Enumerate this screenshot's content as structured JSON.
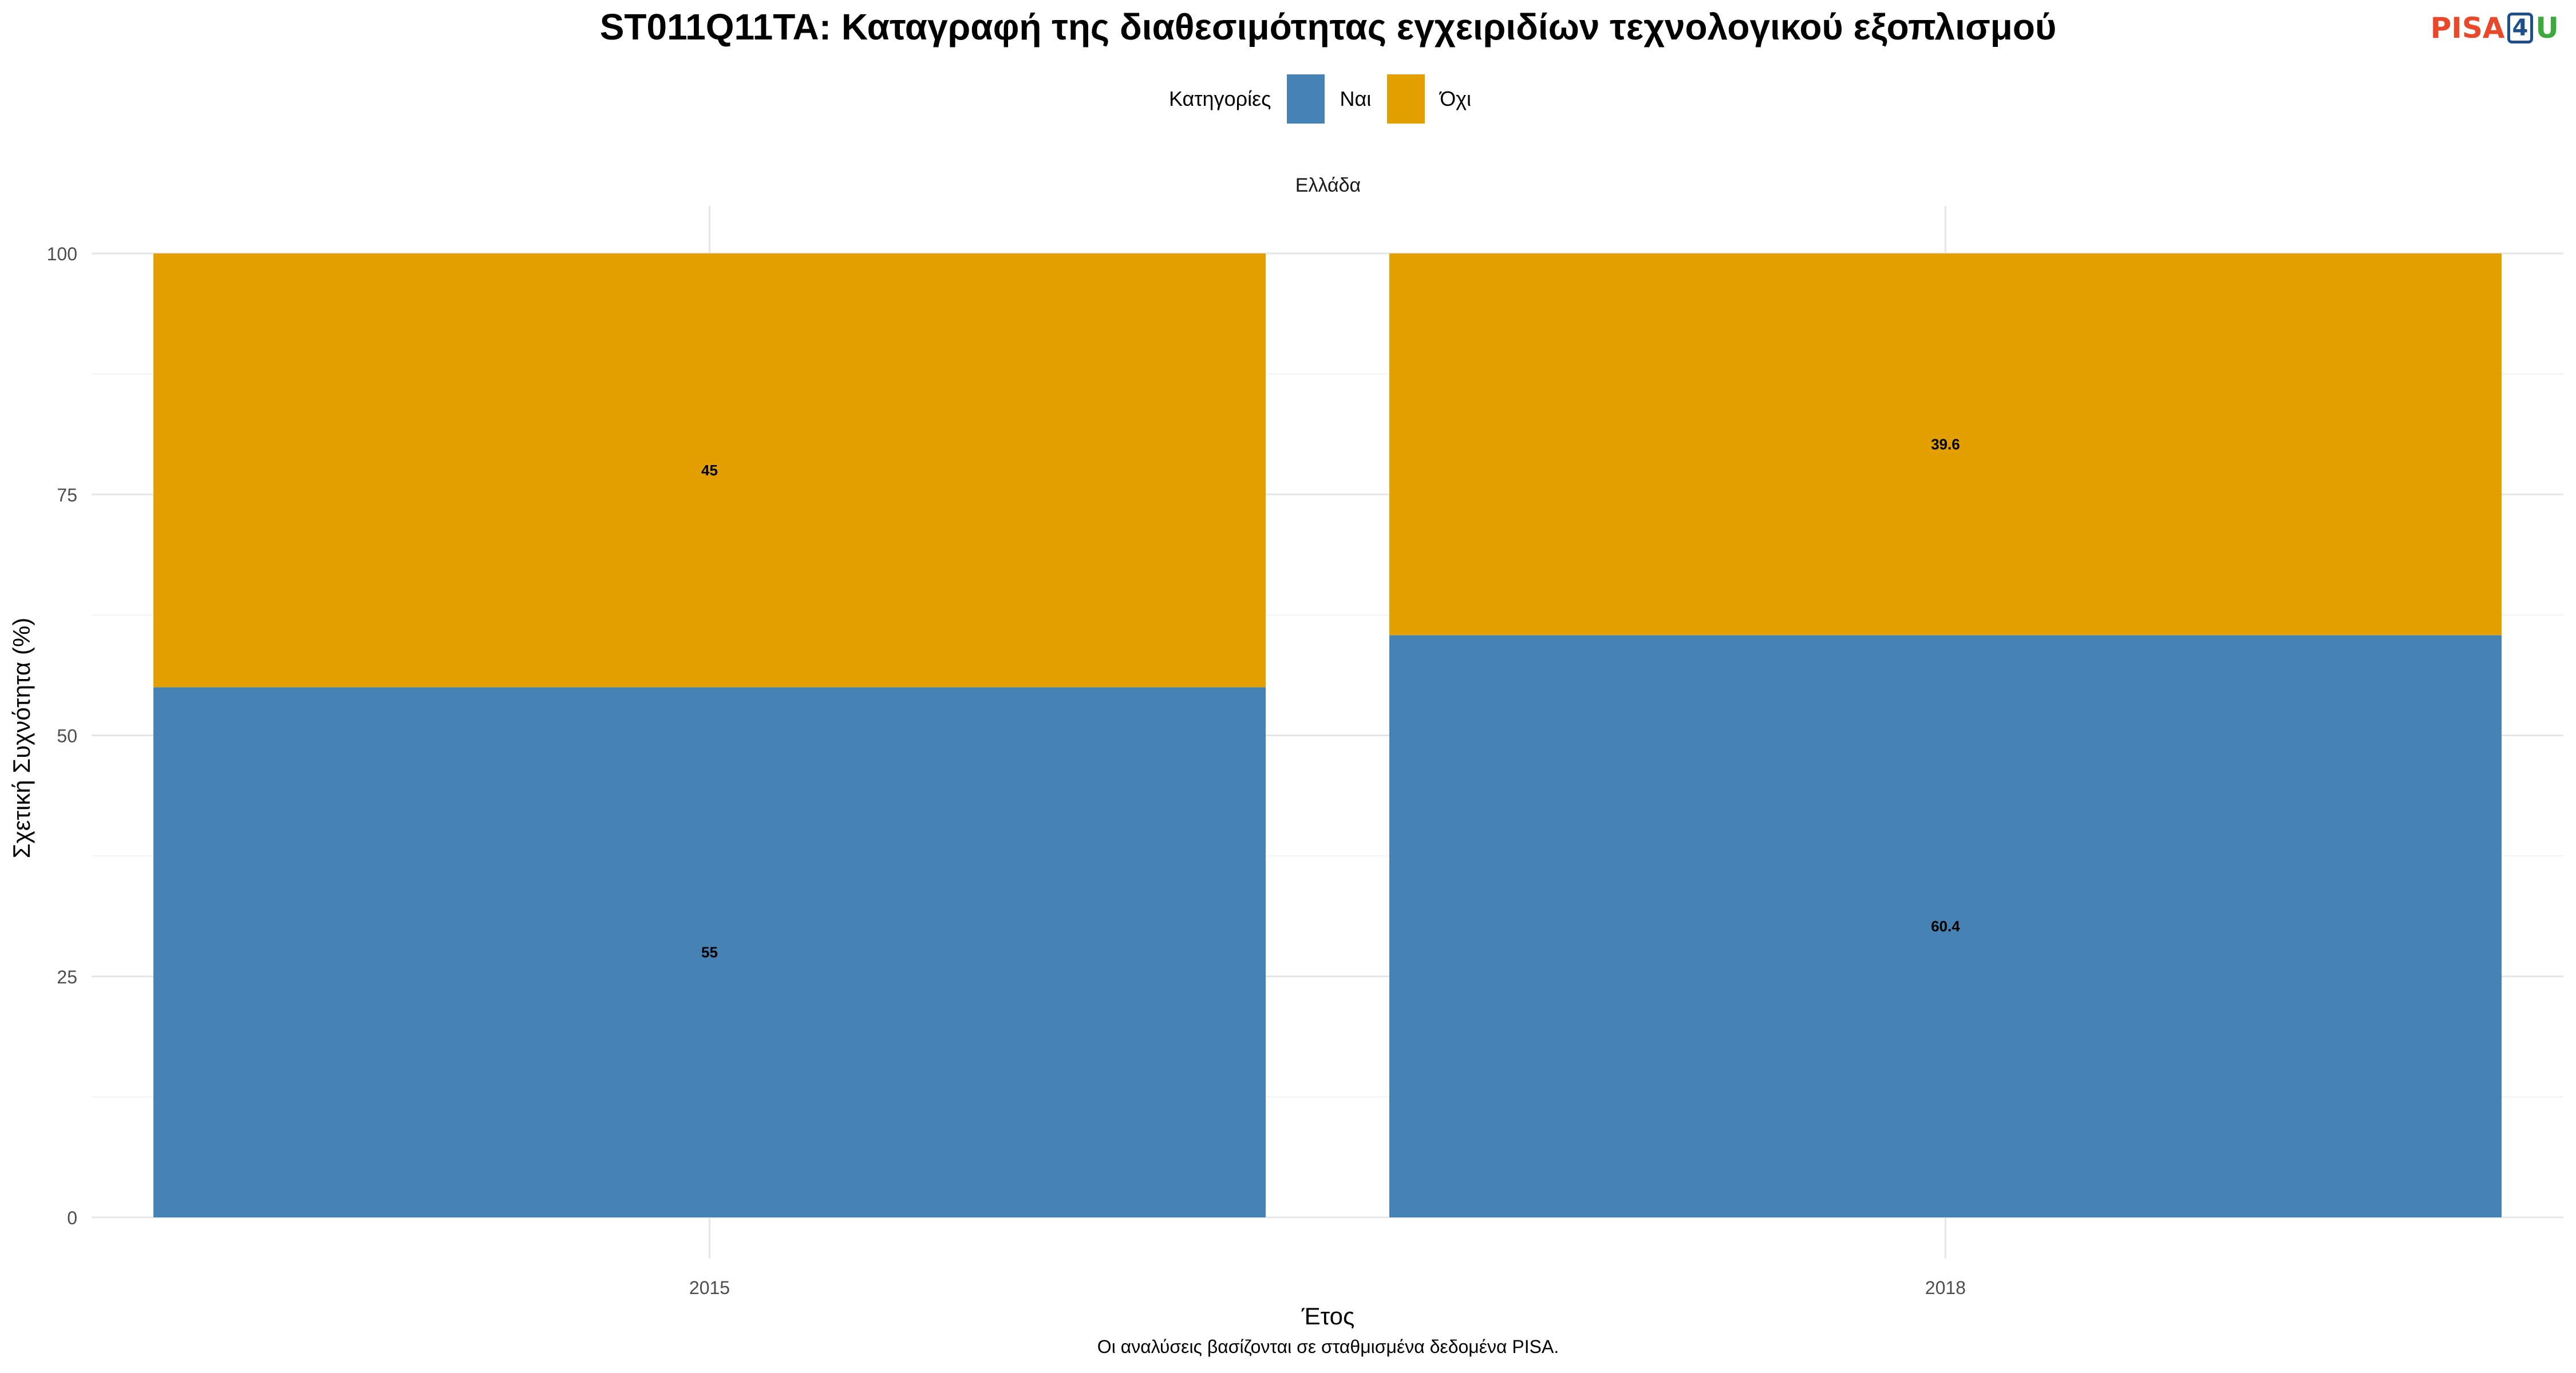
{
  "title": "ST011Q11TA: Καταγραφή της διαθεσιμότητας εγχειριδίων τεχνολογικού εξοπλισμού",
  "logo": {
    "pisa": "PISA",
    "four": "4",
    "u": "U"
  },
  "legend": {
    "title": "Κατηγορίες",
    "items": [
      {
        "label": "Ναι",
        "color": "#4682b4"
      },
      {
        "label": "Όχι",
        "color": "#e3a000"
      }
    ]
  },
  "caption": "Οι αναλύσεις βασίζονται σε σταθμισμένα δεδομένα PISA.",
  "chart_data": {
    "type": "bar",
    "stacked": true,
    "facet_label": "Ελλάδα",
    "categories": [
      "2015",
      "2018"
    ],
    "series": [
      {
        "name": "Ναι",
        "values": [
          55,
          60.4
        ],
        "color": "#4682b4"
      },
      {
        "name": "Όχι",
        "values": [
          45,
          39.6
        ],
        "color": "#e3a000"
      }
    ],
    "data_labels": [
      [
        "55",
        "60.4"
      ],
      [
        "45",
        "39.6"
      ]
    ],
    "xlabel": "Έτος",
    "ylabel": "Σχετική Συχνότητα (%)",
    "ylim": [
      0,
      100
    ],
    "yticks": [
      0,
      25,
      50,
      75,
      100
    ],
    "grid": true,
    "legend_position": "top"
  }
}
